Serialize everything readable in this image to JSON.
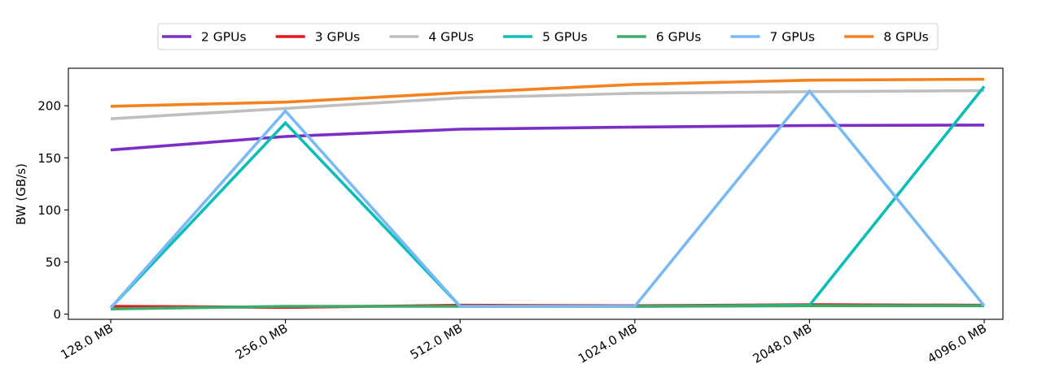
{
  "chart_data": {
    "type": "line",
    "title": "",
    "xlabel": "",
    "ylabel": "BW (GB/s)",
    "categories": [
      "128.0 MB",
      "256.0 MB",
      "512.0 MB",
      "1024.0 MB",
      "2048.0 MB",
      "4096.0 MB"
    ],
    "yticks": [
      0,
      50,
      100,
      150,
      200
    ],
    "ylim": [
      -5,
      236
    ],
    "grid": false,
    "legend_position": "top-center",
    "series": [
      {
        "name": "2 GPUs",
        "color": "#7b2fc7",
        "values": [
          157.5,
          170.5,
          177.5,
          179.5,
          181.0,
          181.5
        ]
      },
      {
        "name": "3 GPUs",
        "color": "#e8151b",
        "values": [
          7.5,
          6.5,
          8.5,
          8.0,
          9.0,
          8.5
        ]
      },
      {
        "name": "4 GPUs",
        "color": "#bfbfbf",
        "values": [
          187.5,
          197.5,
          207.5,
          212.0,
          213.5,
          214.5
        ]
      },
      {
        "name": "5 GPUs",
        "color": "#0dbdb8",
        "values": [
          6.0,
          183.5,
          7.5,
          7.5,
          8.5,
          218.5
        ]
      },
      {
        "name": "6 GPUs",
        "color": "#3aad6a",
        "values": [
          5.0,
          7.5,
          7.5,
          7.5,
          8.0,
          8.0
        ]
      },
      {
        "name": "7 GPUs",
        "color": "#78b9f7",
        "values": [
          6.0,
          195.0,
          7.5,
          7.5,
          214.0,
          8.0
        ]
      },
      {
        "name": "8 GPUs",
        "color": "#f6821f",
        "values": [
          199.5,
          203.5,
          212.5,
          220.5,
          224.5,
          225.5
        ]
      }
    ]
  }
}
